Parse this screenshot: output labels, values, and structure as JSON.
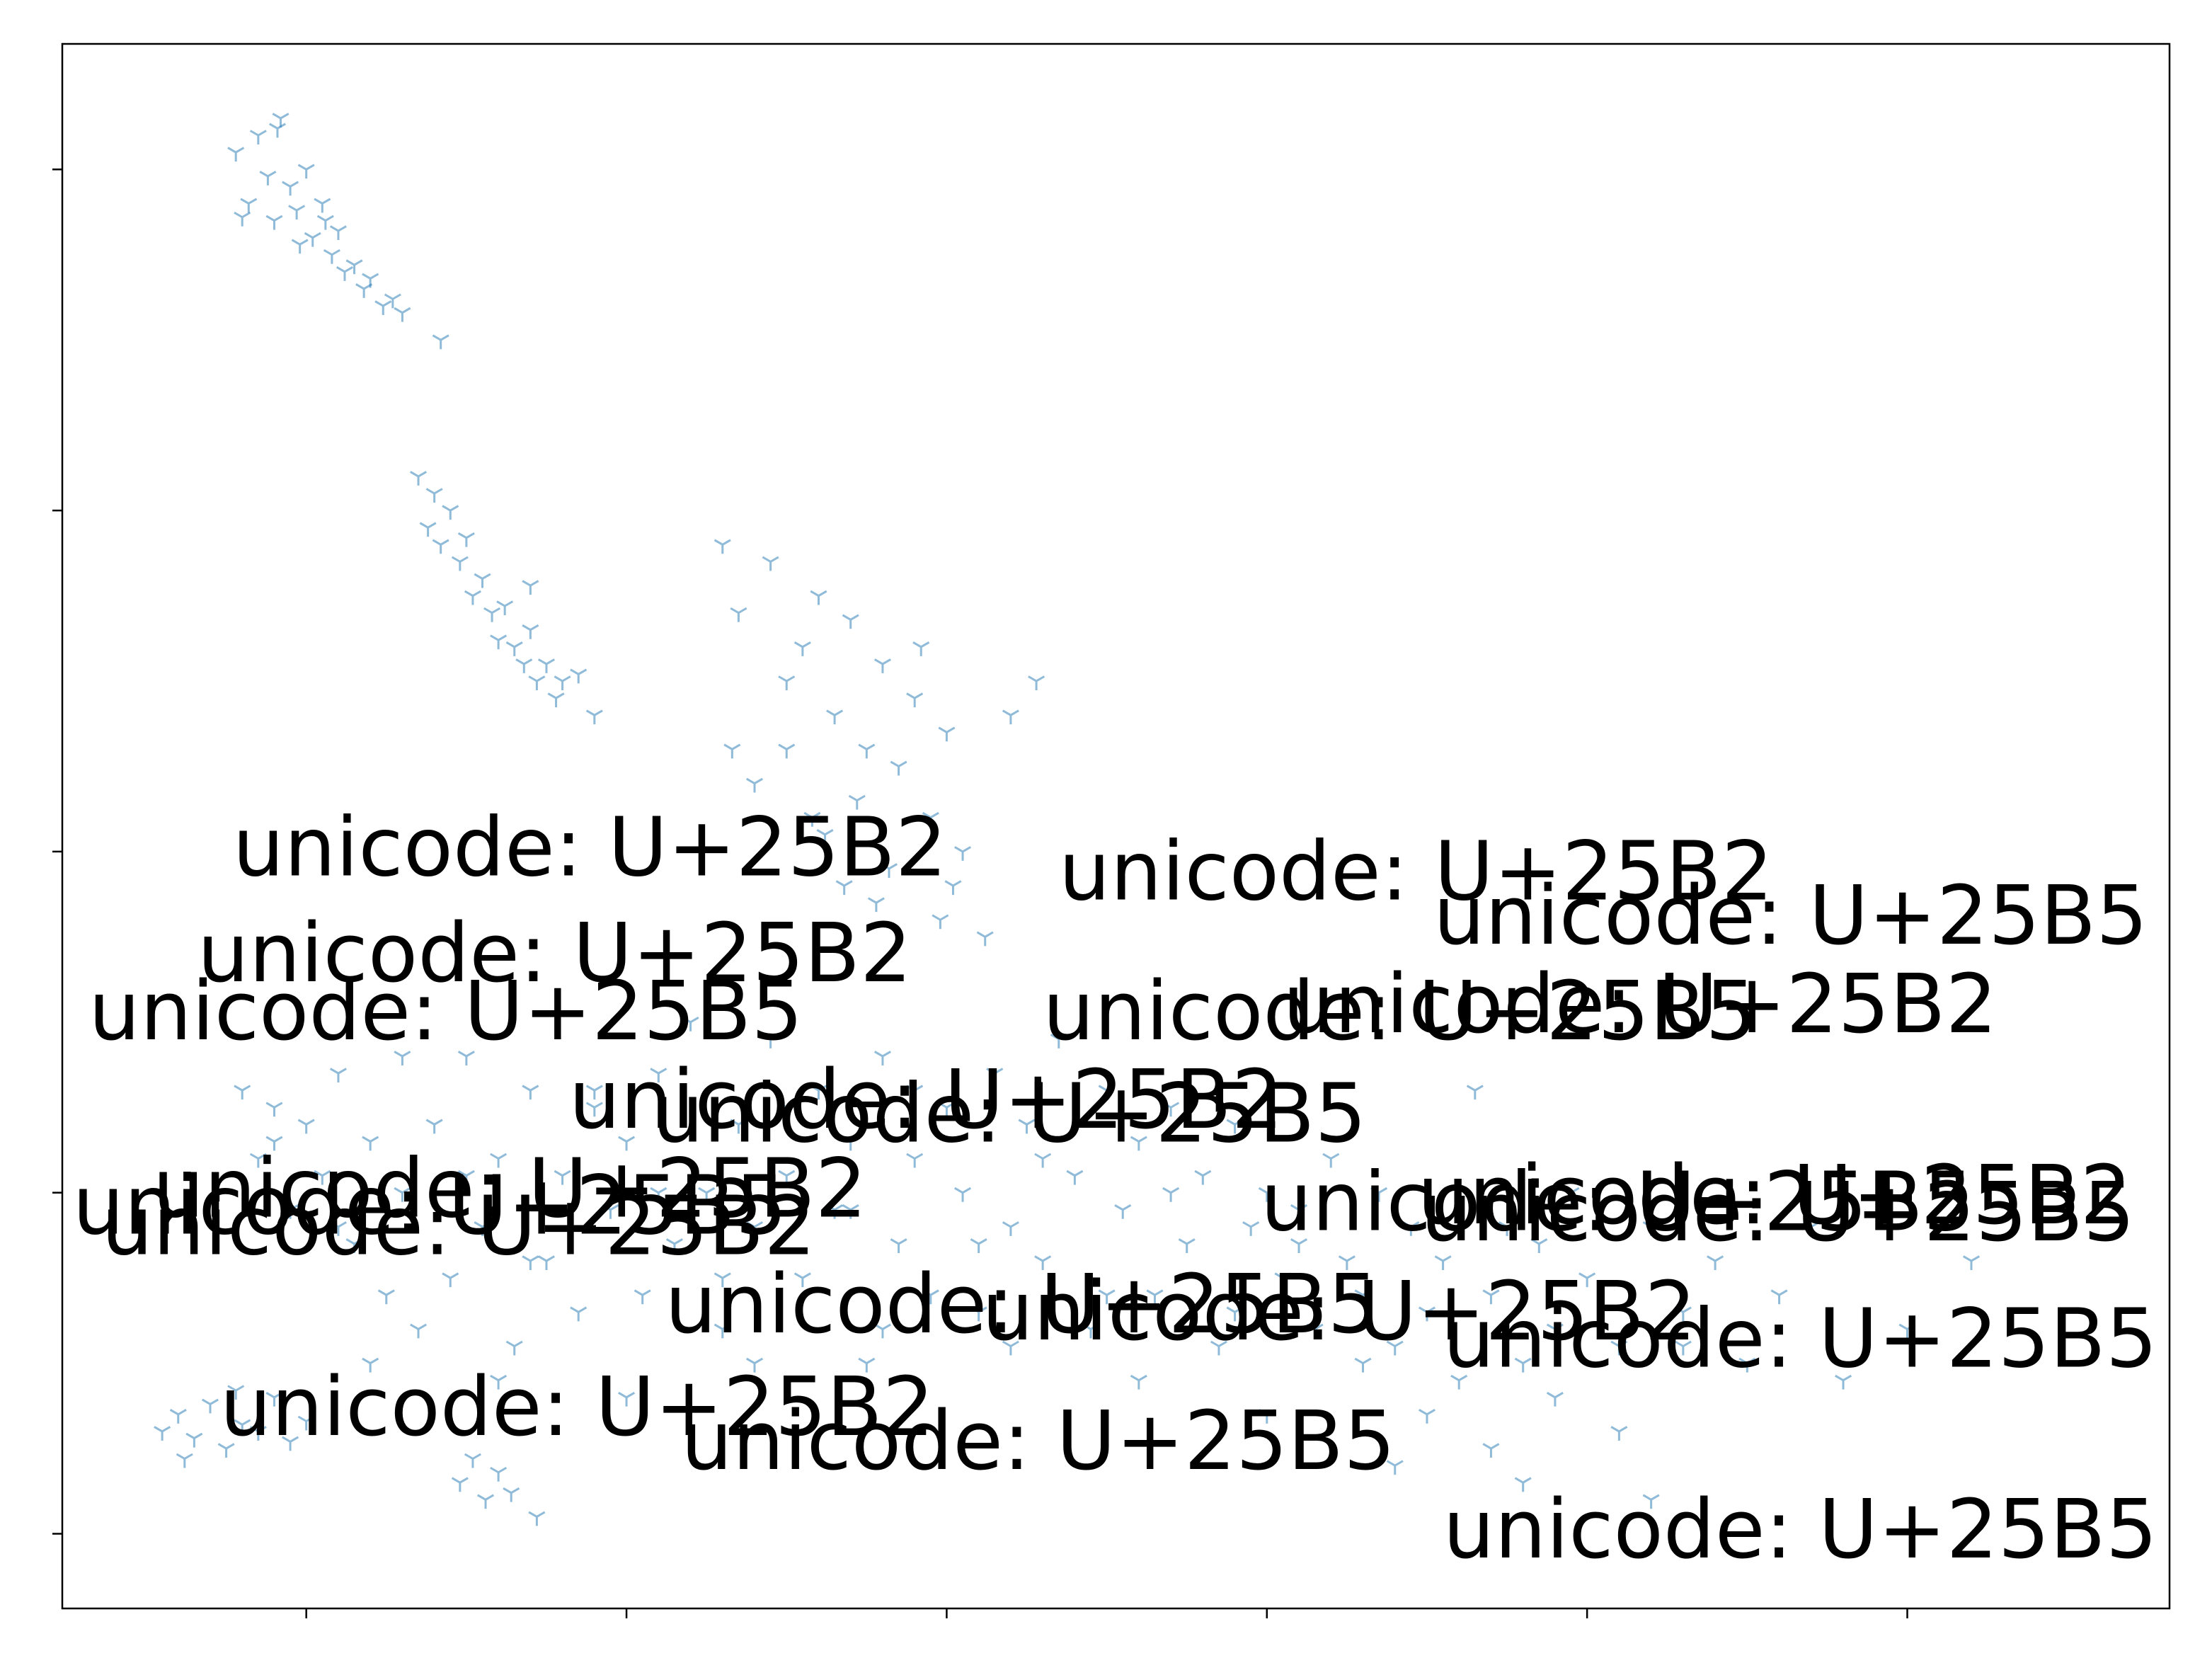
{
  "chart_data": {
    "type": "scatter",
    "color": "#1f77b4",
    "marker": "tri_down",
    "alpha": 0.5,
    "xlim": [
      -0.762,
      5.819
    ],
    "ylim": [
      -0.219,
      4.368
    ],
    "xticks": [
      0,
      1,
      2,
      3,
      4,
      5
    ],
    "yticks": [
      0,
      1,
      2,
      3,
      4
    ],
    "x": [
      -0.22,
      -0.18,
      -0.15,
      -0.12,
      -0.1,
      -0.08,
      -0.05,
      -0.03,
      0,
      0.02,
      0.05,
      0.08,
      0.1,
      0.12,
      0.15,
      0.18,
      0.2,
      0.24,
      0.27,
      0.3,
      0.42,
      -0.2,
      -0.09,
      0.06,
      -0.02,
      0.35,
      0.38,
      0.4,
      0.42,
      0.45,
      0.48,
      0.5,
      0.52,
      0.55,
      0.58,
      0.6,
      0.62,
      0.65,
      0.68,
      0.7,
      0.72,
      0.75,
      0.78,
      0.8,
      0.85,
      0.7,
      0.9,
      1.3,
      1.35,
      1.45,
      1.5,
      1.55,
      1.6,
      1.65,
      1.7,
      1.75,
      1.8,
      1.85,
      1.9,
      1.95,
      2.0,
      2.05,
      1.4,
      1.5,
      1.62,
      1.72,
      1.82,
      1.92,
      2.02,
      2.2,
      2.28,
      1.33,
      1.58,
      1.78,
      1.98,
      2.12,
      1.68,
      -0.2,
      -0.15,
      -0.1,
      -0.05,
      0,
      0.05,
      0.1,
      0.15,
      0.2,
      0.25,
      0.3,
      0.35,
      0.4,
      0.45,
      0.5,
      0.55,
      0.6,
      0.65,
      0.7,
      0.75,
      0.8,
      0.85,
      0.9,
      0.95,
      1.0,
      1.05,
      1.1,
      1.15,
      1.2,
      1.25,
      1.3,
      1.35,
      1.4,
      1.45,
      1.5,
      1.55,
      1.6,
      1.65,
      1.7,
      1.75,
      1.8,
      1.85,
      1.9,
      1.95,
      2.0,
      2.05,
      2.1,
      2.15,
      2.2,
      2.25,
      2.3,
      2.35,
      2.4,
      2.45,
      2.5,
      2.55,
      2.6,
      2.65,
      2.7,
      2.75,
      2.8,
      2.85,
      2.9,
      2.95,
      3.0,
      3.05,
      3.1,
      3.15,
      3.2,
      3.25,
      3.3,
      3.35,
      3.4,
      3.45,
      3.5,
      3.55,
      3.6,
      3.65,
      3.7,
      3.75,
      3.8,
      3.85,
      3.9,
      3.95,
      4.0,
      4.1,
      4.2,
      4.3,
      4.4,
      4.5,
      -0.1,
      0.1,
      0.3,
      0.5,
      0.7,
      0.9,
      1.1,
      1.3,
      1.5,
      1.7,
      1.9,
      2.1,
      2.3,
      2.5,
      2.7,
      2.9,
      3.1,
      3.3,
      3.5,
      3.7,
      3.9,
      4.1,
      4.3,
      4.6,
      4.8,
      5.0,
      5.2,
      0.2,
      0.6,
      1.0,
      1.4,
      1.8,
      2.2,
      2.6,
      3.0,
      3.4,
      3.8,
      4.2,
      4.7,
      5.1,
      -0.45,
      -0.4,
      -0.35,
      -0.3,
      -0.25,
      -0.2,
      -0.15,
      -0.1,
      -0.05,
      0.0,
      -0.38,
      -0.22,
      0.48,
      0.52,
      0.56,
      0.6,
      0.64,
      0.72
    ],
    "y": [
      4.05,
      3.9,
      4.1,
      3.98,
      3.85,
      4.15,
      3.95,
      3.88,
      4.0,
      3.8,
      3.9,
      3.75,
      3.82,
      3.7,
      3.72,
      3.65,
      3.68,
      3.6,
      3.62,
      3.58,
      3.5,
      3.86,
      4.12,
      3.85,
      3.78,
      3.1,
      2.95,
      3.05,
      2.9,
      3.0,
      2.85,
      2.92,
      2.75,
      2.8,
      2.7,
      2.62,
      2.72,
      2.6,
      2.55,
      2.65,
      2.5,
      2.55,
      2.45,
      2.5,
      2.52,
      2.78,
      2.4,
      2.9,
      2.7,
      2.85,
      2.5,
      2.6,
      2.75,
      2.4,
      2.68,
      2.3,
      2.55,
      2.25,
      2.45,
      2.1,
      2.35,
      2.0,
      2.2,
      2.3,
      2.05,
      2.15,
      1.95,
      2.6,
      1.9,
      2.4,
      2.5,
      2.3,
      2.1,
      1.85,
      1.8,
      1.75,
      1.9,
      1.3,
      1.1,
      1.25,
      0.95,
      1.2,
      1.05,
      1.35,
      0.85,
      1.15,
      0.7,
      1.0,
      0.6,
      1.2,
      0.75,
      1.4,
      0.9,
      1.1,
      0.55,
      1.3,
      0.8,
      1.05,
      0.65,
      1.25,
      0.95,
      1.15,
      0.7,
      1.35,
      0.85,
      1.5,
      1.0,
      0.6,
      1.2,
      0.9,
      1.45,
      1.05,
      0.75,
      1.3,
      0.95,
      1.15,
      0.5,
      1.4,
      0.85,
      1.1,
      0.7,
      1.25,
      1.0,
      0.65,
      1.35,
      0.9,
      1.2,
      0.8,
      1.45,
      1.05,
      0.6,
      1.3,
      0.95,
      1.15,
      0.7,
      1.25,
      0.85,
      1.05,
      0.55,
      1.2,
      0.9,
      1.0,
      0.75,
      0.95,
      0.6,
      1.1,
      0.8,
      0.7,
      1.0,
      0.55,
      0.9,
      0.65,
      0.8,
      0.45,
      1.3,
      0.7,
      0.9,
      0.5,
      0.85,
      0.6,
      1.0,
      0.75,
      0.55,
      0.9,
      0.65,
      0.8,
      0.5,
      1.15,
      0.9,
      1.4,
      1.05,
      0.8,
      1.3,
      1.0,
      0.75,
      1.25,
      0.95,
      1.3,
      0.85,
      1.1,
      0.7,
      1.0,
      0.65,
      0.85,
      0.5,
      0.35,
      0.25,
      0.4,
      0.3,
      0.55,
      0.7,
      0.45,
      0.6,
      0.8,
      0.5,
      0.45,
      0.4,
      0.5,
      0.6,
      0.55,
      0.45,
      0.35,
      0.2,
      0.15,
      0.1,
      0.9,
      1.05,
      0.3,
      0.35,
      0.28,
      0.38,
      0.25,
      0.32,
      0.3,
      0.4,
      0.27,
      0.33,
      0.22,
      0.42,
      0.15,
      0.22,
      0.1,
      0.18,
      0.12,
      0.05
    ],
    "annotations": [
      {
        "text": "unicode: U+25B2",
        "x": -0.23,
        "y": 1.93
      },
      {
        "text": "unicode: U+25B2",
        "x": 2.35,
        "y": 1.86
      },
      {
        "text": "unicode: U+25B5",
        "x": 3.52,
        "y": 1.73
      },
      {
        "text": "unicode: U+25B2",
        "x": -0.34,
        "y": 1.62
      },
      {
        "text": "unicode: U+25B5",
        "x": -0.68,
        "y": 1.45
      },
      {
        "text": "unicode: U+25B5",
        "x": 2.3,
        "y": 1.45
      },
      {
        "text": "unicode: U+25B2",
        "x": 3.05,
        "y": 1.47
      },
      {
        "text": "unicode: U+25B2",
        "x": 0.82,
        "y": 1.19
      },
      {
        "text": "unicode: U+25B5",
        "x": 1.08,
        "y": 1.15
      },
      {
        "text": "unicode: U+25B2",
        "x": -0.48,
        "y": 0.93
      },
      {
        "text": "unicode: U+25B5",
        "x": -0.73,
        "y": 0.88
      },
      {
        "text": "unicode: U+25B2",
        "x": -0.64,
        "y": 0.82
      },
      {
        "text": "unicode: U+25B5",
        "x": 2.98,
        "y": 0.89
      },
      {
        "text": "unicode: U+25B2",
        "x": 3.47,
        "y": 0.91
      },
      {
        "text": "unicode: U+25B5",
        "x": 3.48,
        "y": 0.86
      },
      {
        "text": "unicode: U+25B5",
        "x": 1.12,
        "y": 0.59
      },
      {
        "text": "unicode: U+25B2",
        "x": 2.11,
        "y": 0.57
      },
      {
        "text": "unicode: U+25B5",
        "x": 3.55,
        "y": 0.49
      },
      {
        "text": "unicode: U+25B2",
        "x": -0.27,
        "y": 0.29
      },
      {
        "text": "unicode: U+25B5",
        "x": 1.17,
        "y": 0.19
      },
      {
        "text": "unicode: U+25B5",
        "x": 3.55,
        "y": -0.07
      }
    ]
  }
}
